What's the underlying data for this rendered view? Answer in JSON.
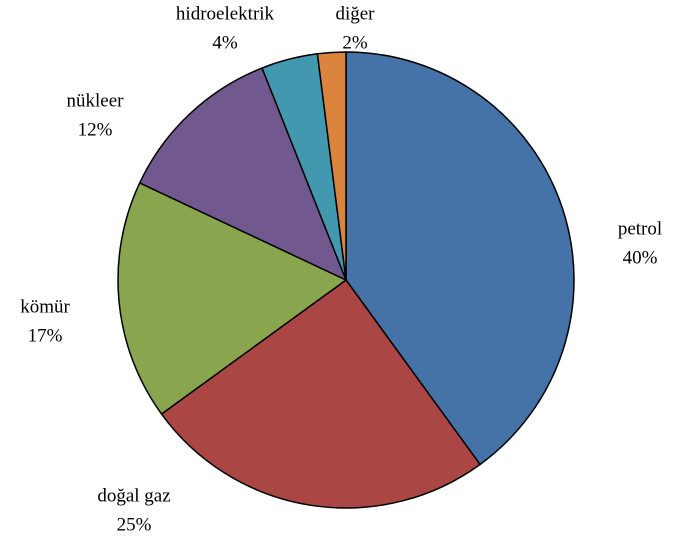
{
  "chart_data": {
    "type": "pie",
    "categories": [
      "petrol",
      "doğal gaz",
      "kömür",
      "nükleer",
      "hidroelektrik",
      "diğer"
    ],
    "values": [
      40,
      25,
      17,
      12,
      4,
      2
    ],
    "value_labels": [
      "40%",
      "25%",
      "17%",
      "12%",
      "4%",
      "2%"
    ],
    "colors": [
      "#4572a7",
      "#aa4643",
      "#89a54e",
      "#71588f",
      "#4198af",
      "#db843d"
    ]
  }
}
